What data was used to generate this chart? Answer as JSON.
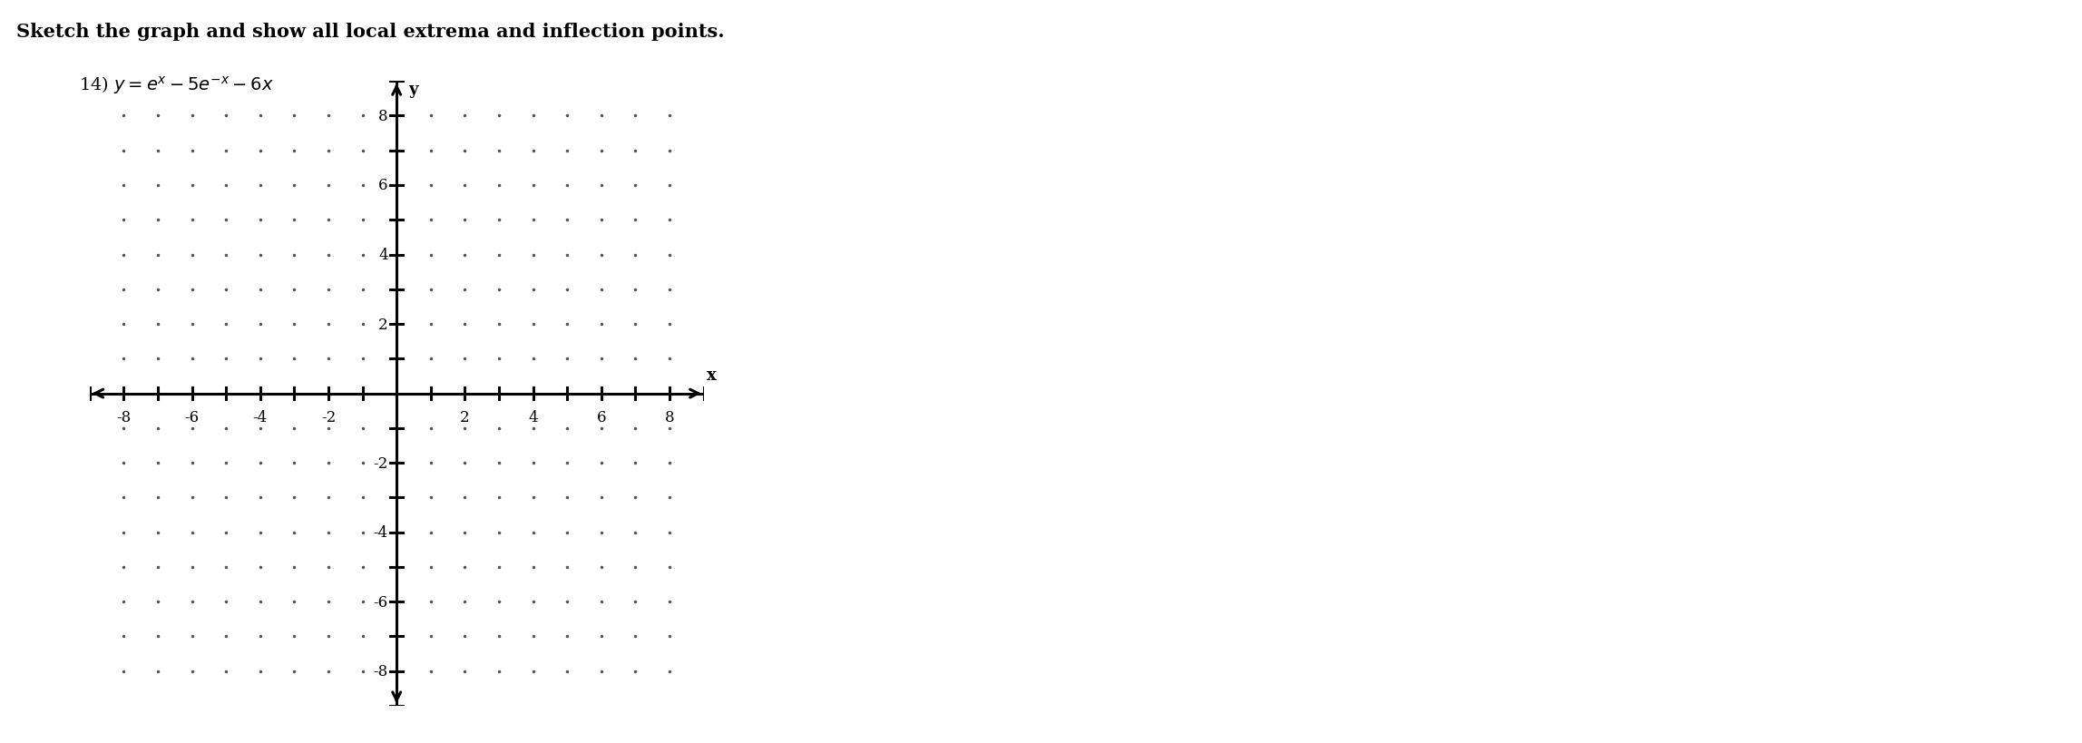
{
  "title_bold": "Sketch the graph and show all local extrema and inflection points.",
  "problem_label_num": "14) ",
  "problem_label_eq": "y = e^{x} - 5e^{-x} - 6x",
  "x_label": "x",
  "y_label": "y",
  "x_min": -9,
  "x_max": 9,
  "y_min": -9,
  "y_max": 9,
  "x_ticks": [
    -8,
    -6,
    -4,
    -2,
    2,
    4,
    6,
    8
  ],
  "y_ticks": [
    -8,
    -6,
    -4,
    -2,
    2,
    4,
    6,
    8
  ],
  "background_color": "#ffffff",
  "dot_color": "#555555",
  "axis_color": "#000000",
  "title_fontsize": 15,
  "label_fontsize": 13,
  "tick_fontsize": 12,
  "eq_fontsize": 14
}
